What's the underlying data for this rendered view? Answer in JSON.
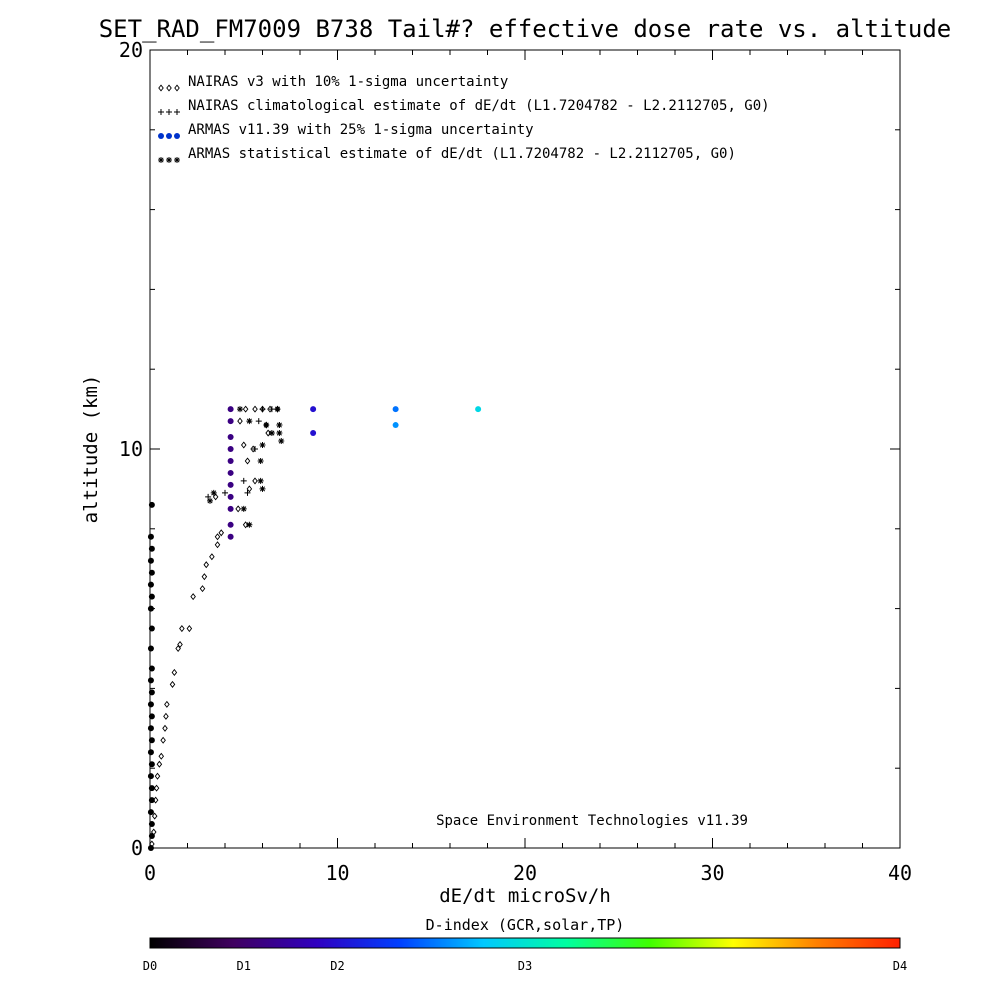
{
  "chart_data": {
    "type": "scatter",
    "title": "SET_RAD_FM7009  B738 Tail#? effective dose rate vs. altitude",
    "xlabel": "dE/dt microSv/h",
    "ylabel": "altitude (km)",
    "xlim": [
      0,
      40
    ],
    "ylim": [
      0,
      20
    ],
    "x_ticks": [
      {
        "value": 0,
        "label": "0"
      },
      {
        "value": 10,
        "label": "10"
      },
      {
        "value": 20,
        "label": "20"
      },
      {
        "value": 30,
        "label": "30"
      },
      {
        "value": 40,
        "label": "40"
      }
    ],
    "y_ticks": [
      {
        "value": 0,
        "label": "0"
      },
      {
        "value": 10,
        "label": "10"
      },
      {
        "value": 20,
        "label": "20"
      }
    ],
    "legend": [
      {
        "label": "NAIRAS v3 with 10% 1-sigma uncertainty",
        "marker": "diamond",
        "color": "#000000"
      },
      {
        "label": "NAIRAS climatological estimate of dE/dt (L1.7204782 - L2.2112705, G0)",
        "marker": "plus",
        "color": "#000000"
      },
      {
        "label": "ARMAS v11.39 with 25% 1-sigma uncertainty",
        "marker": "dot",
        "color": "#0033cc"
      },
      {
        "label": "ARMAS statistical estimate of dE/dt (L1.7204782 - L2.2112705, G0)",
        "marker": "asterisk",
        "color": "#000000"
      }
    ],
    "annotation": "Space Environment Technologies v11.39",
    "series": [
      {
        "name": "NAIRAS v3 with 10% 1-sigma uncertainty",
        "marker": "diamond",
        "points": [
          [
            0.1,
            0.1
          ],
          [
            0.2,
            0.4
          ],
          [
            0.25,
            0.8
          ],
          [
            0.3,
            1.2
          ],
          [
            0.35,
            1.5
          ],
          [
            0.4,
            1.8
          ],
          [
            0.5,
            2.1
          ],
          [
            0.6,
            2.3
          ],
          [
            0.7,
            2.7
          ],
          [
            0.8,
            3.0
          ],
          [
            0.85,
            3.3
          ],
          [
            0.9,
            3.6
          ],
          [
            1.2,
            4.1
          ],
          [
            1.3,
            4.4
          ],
          [
            1.5,
            5.0
          ],
          [
            1.6,
            5.1
          ],
          [
            1.7,
            5.5
          ],
          [
            2.1,
            5.5
          ],
          [
            2.3,
            6.3
          ],
          [
            2.8,
            6.5
          ],
          [
            2.9,
            6.8
          ],
          [
            3.0,
            7.1
          ],
          [
            3.3,
            7.3
          ],
          [
            3.6,
            7.6
          ],
          [
            3.6,
            7.8
          ],
          [
            3.8,
            7.9
          ],
          [
            4.7,
            8.5
          ],
          [
            5.1,
            8.1
          ],
          [
            5.3,
            9.0
          ],
          [
            5.6,
            9.2
          ],
          [
            5.2,
            9.7
          ],
          [
            5.0,
            10.1
          ],
          [
            4.8,
            10.7
          ],
          [
            5.1,
            11.0
          ],
          [
            5.6,
            11.0
          ],
          [
            6.0,
            11.0
          ],
          [
            6.4,
            11.0
          ],
          [
            6.8,
            11.0
          ],
          [
            6.2,
            10.6
          ],
          [
            6.3,
            10.4
          ],
          [
            5.5,
            10.0
          ],
          [
            3.5,
            8.8
          ]
        ]
      },
      {
        "name": "NAIRAS climatological estimate of dE/dt (L1.7204782 - L2.2112705, G0)",
        "marker": "plus",
        "points": [
          [
            3.1,
            8.8
          ],
          [
            4.0,
            8.9
          ],
          [
            5.0,
            9.2
          ],
          [
            5.6,
            10.0
          ],
          [
            5.8,
            10.7
          ],
          [
            6.0,
            11.0
          ],
          [
            6.5,
            11.0
          ],
          [
            6.9,
            10.6
          ],
          [
            5.2,
            8.9
          ]
        ]
      },
      {
        "name": "ARMAS v11.39 with 25% 1-sigma uncertainty",
        "marker": "dot",
        "points": [
          [
            0.05,
            0.0
          ],
          [
            0.1,
            0.3
          ],
          [
            0.1,
            0.6
          ],
          [
            0.05,
            0.9
          ],
          [
            0.1,
            1.2
          ],
          [
            0.1,
            1.5
          ],
          [
            0.05,
            1.8
          ],
          [
            0.1,
            2.1
          ],
          [
            0.05,
            2.4
          ],
          [
            0.1,
            2.7
          ],
          [
            0.05,
            3.0
          ],
          [
            0.1,
            3.3
          ],
          [
            0.05,
            3.6
          ],
          [
            0.1,
            3.9
          ],
          [
            0.05,
            4.2
          ],
          [
            0.1,
            4.5
          ],
          [
            0.05,
            5.0
          ],
          [
            0.1,
            5.5
          ],
          [
            0.05,
            6.0
          ],
          [
            0.1,
            6.3
          ],
          [
            0.05,
            6.6
          ],
          [
            0.1,
            6.9
          ],
          [
            0.05,
            7.2
          ],
          [
            0.1,
            7.5
          ],
          [
            0.05,
            7.8
          ],
          [
            0.1,
            8.6
          ],
          [
            4.3,
            7.8
          ],
          [
            4.3,
            8.1
          ],
          [
            4.3,
            8.5
          ],
          [
            4.3,
            8.8
          ],
          [
            4.3,
            9.1
          ],
          [
            4.3,
            9.4
          ],
          [
            4.3,
            9.7
          ],
          [
            4.3,
            10.0
          ],
          [
            4.3,
            10.3
          ],
          [
            4.3,
            10.7
          ],
          [
            4.3,
            11.0
          ],
          [
            8.7,
            10.4
          ],
          [
            8.7,
            11.0
          ],
          [
            13.1,
            10.6
          ],
          [
            13.1,
            11.0
          ],
          [
            17.5,
            11.0
          ]
        ],
        "dindex": [
          0.0,
          0.0,
          0.0,
          0.0,
          0.0,
          0.0,
          0.0,
          0.0,
          0.0,
          0.0,
          0.0,
          0.0,
          0.0,
          0.0,
          0.0,
          0.0,
          0.0,
          0.0,
          0.0,
          0.0,
          0.0,
          0.0,
          0.0,
          0.0,
          0.0,
          0.0,
          0.6,
          0.6,
          0.6,
          0.6,
          0.6,
          0.6,
          0.6,
          0.6,
          0.6,
          0.6,
          0.6,
          1.0,
          1.0,
          1.6,
          1.5,
          1.9
        ]
      },
      {
        "name": "ARMAS statistical estimate of dE/dt (L1.7204782 - L2.2112705, G0)",
        "marker": "asterisk",
        "points": [
          [
            3.2,
            8.7
          ],
          [
            3.4,
            8.9
          ],
          [
            5.0,
            8.5
          ],
          [
            5.3,
            8.1
          ],
          [
            5.9,
            9.2
          ],
          [
            6.0,
            9.0
          ],
          [
            5.9,
            9.7
          ],
          [
            6.0,
            10.1
          ],
          [
            5.3,
            10.7
          ],
          [
            6.2,
            10.6
          ],
          [
            6.9,
            10.4
          ],
          [
            7.0,
            10.2
          ],
          [
            6.8,
            11.0
          ],
          [
            4.8,
            11.0
          ],
          [
            6.5,
            10.4
          ],
          [
            6.9,
            10.6
          ]
        ]
      }
    ],
    "colorbar": {
      "title": "D-index (GCR,solar,TP)",
      "range": [
        0,
        4
      ],
      "ticks": [
        {
          "value": 0,
          "label": "D0"
        },
        {
          "value": 0.5,
          "label": "D1"
        },
        {
          "value": 1.0,
          "label": "D2"
        },
        {
          "value": 2.0,
          "label": "D3"
        },
        {
          "value": 4.0,
          "label": "D4"
        }
      ],
      "colors": [
        "#000000",
        "#400060",
        "#3000c0",
        "#0040ff",
        "#00c8ff",
        "#00ffa0",
        "#40ff00",
        "#ffff00",
        "#ff8000",
        "#ff2000"
      ]
    }
  }
}
